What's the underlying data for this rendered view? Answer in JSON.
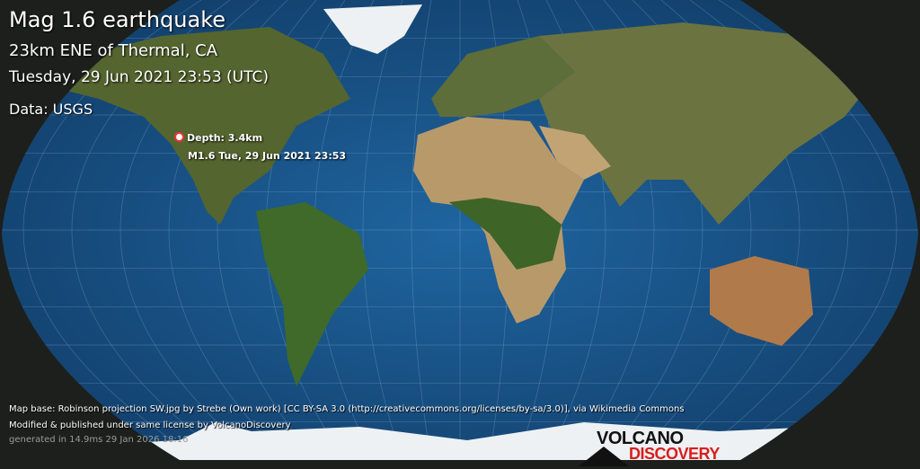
{
  "header": {
    "title": "Mag 1.6 earthquake",
    "location": "23km ENE of Thermal, CA",
    "datetime": "Tuesday, 29 Jun 2021 23:53 (UTC)",
    "data_source": "Data: USGS"
  },
  "marker": {
    "depth_label": "Depth: 3.4km",
    "event_label": "M1.6 Tue, 29 Jun 2021 23:53",
    "color": "#e33333"
  },
  "credits": {
    "map_base": "Map base: Robinson projection SW.jpg by Strebe (Own work) [CC BY-SA 3.0 (http://creativecommons.org/licenses/by-sa/3.0)], via Wikimedia Commons",
    "modified": "Modified & published under same license by VolcanoDiscovery",
    "generated": "generated in 14.9ms 29 Jan 2026 18:16"
  },
  "logo": {
    "line1": "VOLCANO",
    "line2": "DISCOVERY"
  },
  "colors": {
    "ocean": "#1d5a8e",
    "land": "#5b6b36",
    "desert": "#b89a6a",
    "ice": "#f2f4f6",
    "background": "#1d1f1c"
  }
}
